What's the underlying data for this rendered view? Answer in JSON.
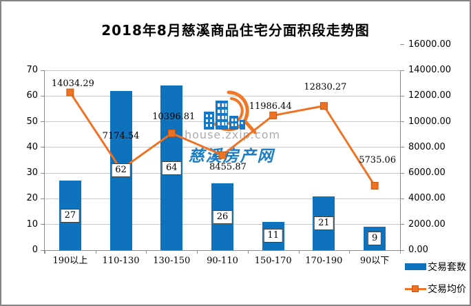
{
  "title": "2018年8月慈溪商品住宅分面积段走势图",
  "watermark": {
    "site": "house.zxip.com",
    "name": "慈溪房产网"
  },
  "colors": {
    "bar": "#0e72bd",
    "line": "#ed7224",
    "line_dark": "#c65911",
    "grid": "#c9c9c9",
    "axis": "#8a8a8a",
    "watermark_text": "#ababab",
    "watermark_name": "#1a7dc5"
  },
  "chart_data": {
    "type": "bar+line combo",
    "title": "2018年8月慈溪商品住宅分面积段走势图",
    "categories": [
      "190以上",
      "110-130",
      "130-150",
      "90-110",
      "150-170",
      "170-190",
      "90以下"
    ],
    "series": [
      {
        "name": "交易套数",
        "type": "bar",
        "axis": "left",
        "values": [
          27,
          62,
          64,
          26,
          11,
          21,
          9
        ]
      },
      {
        "name": "交易均价",
        "type": "line",
        "axis": "right",
        "values": [
          14034.29,
          7174.54,
          10396.81,
          8455.87,
          11986.44,
          12830.27,
          5735.06
        ],
        "label_offsets": [
          {
            "dx": 4,
            "dy": -20
          },
          {
            "dx": 0,
            "dy": -56
          },
          {
            "dx": 3,
            "dy": -31
          },
          {
            "dx": 8,
            "dy": 10
          },
          {
            "dx": -4,
            "dy": -20
          },
          {
            "dx": 2,
            "dy": -35
          },
          {
            "dx": 4,
            "dy": -44
          }
        ]
      }
    ],
    "left_axis": {
      "min": 0,
      "max": 70,
      "step": 10,
      "ticks": [
        "0",
        "10",
        "20",
        "30",
        "40",
        "50",
        "60",
        "70"
      ]
    },
    "right_axis": {
      "min": 0,
      "max": 16000,
      "step": 2000,
      "ticks": [
        "0.00",
        "2000.00",
        "4000.00",
        "6000.00",
        "8000.00",
        "10000.00",
        "12000.00",
        "14000.00",
        "16000.00"
      ]
    },
    "grid": true,
    "legend_position": "bottom-right",
    "legend": [
      "交易套数",
      "交易均价"
    ]
  }
}
